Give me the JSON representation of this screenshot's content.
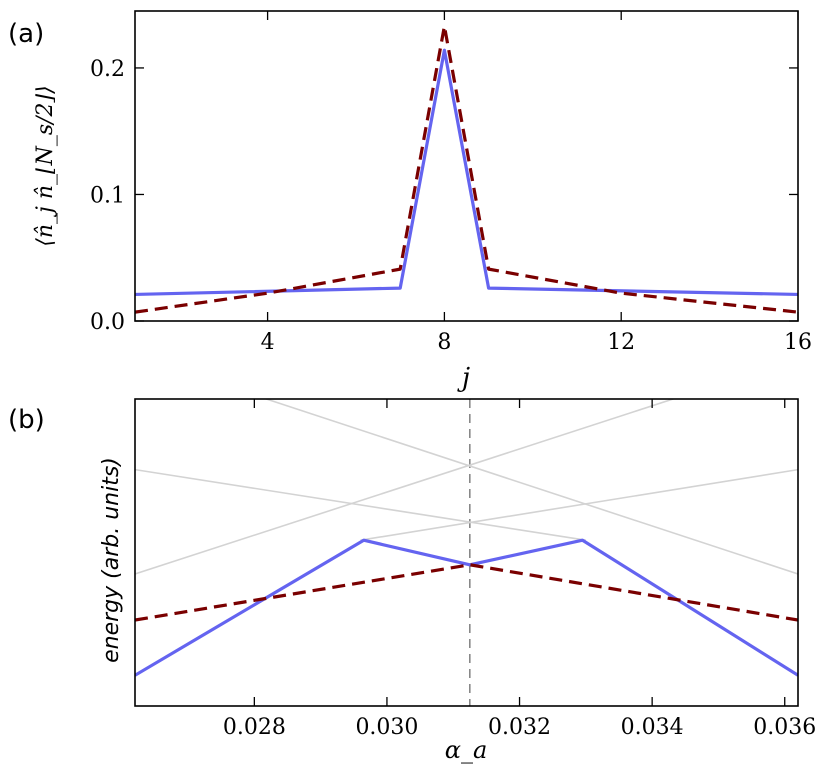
{
  "figure": {
    "panel_a_label": "(a)",
    "panel_b_label": "(b)"
  },
  "chart_data": [
    {
      "type": "line",
      "panel": "(a)",
      "title": "",
      "xlabel": "j",
      "ylabel": "⟨n̂_j n̂_⌊N_s/2⌋⟩",
      "xlim": [
        1,
        16
      ],
      "ylim": [
        0.0,
        0.245
      ],
      "xticks": [
        4,
        8,
        12,
        16
      ],
      "xtick_labels": [
        "4",
        "8",
        "12",
        "16"
      ],
      "yticks": [
        0.0,
        0.1,
        0.2
      ],
      "ytick_labels": [
        "0.0",
        "0.1",
        "0.2"
      ],
      "series": [
        {
          "name": "solid",
          "style": "solid",
          "color": "#6464f0",
          "x": [
            1,
            7,
            8,
            9,
            16
          ],
          "y": [
            0.021,
            0.026,
            0.214,
            0.026,
            0.021
          ]
        },
        {
          "name": "dashed",
          "style": "dashed",
          "color": "#7a0000",
          "x": [
            1,
            4,
            7,
            8,
            9,
            12,
            16
          ],
          "y": [
            0.007,
            0.022,
            0.041,
            0.233,
            0.041,
            0.022,
            0.007
          ]
        }
      ]
    },
    {
      "type": "line",
      "panel": "(b)",
      "title": "",
      "xlabel": "α_a",
      "ylabel": "energy (arb. units)",
      "xlim": [
        0.0262,
        0.0362
      ],
      "ylim": [
        0.0,
        1.0
      ],
      "xticks": [
        0.028,
        0.03,
        0.032,
        0.034,
        0.036
      ],
      "xtick_labels": [
        "0.028",
        "0.030",
        "0.032",
        "0.034",
        "0.036"
      ],
      "vline": 0.03125,
      "series": [
        {
          "name": "solid",
          "style": "solid",
          "color": "#6464f0",
          "x": [
            0.0262,
            0.02965,
            0.03125,
            0.03295,
            0.0362
          ],
          "y": [
            0.1,
            0.54,
            0.46,
            0.54,
            0.1
          ]
        },
        {
          "name": "dashed",
          "style": "dashed",
          "color": "#7a0000",
          "x": [
            0.0262,
            0.03125,
            0.0362
          ],
          "y": [
            0.28,
            0.46,
            0.28
          ]
        },
        {
          "name": "gray-1",
          "style": "thin",
          "color": "#d3d3d3",
          "x": [
            0.0262,
            0.033
          ],
          "y": [
            0.77,
            0.54
          ]
        },
        {
          "name": "gray-2",
          "style": "thin",
          "color": "#d3d3d3",
          "x": [
            0.0296,
            0.0362
          ],
          "y": [
            0.54,
            0.77
          ]
        },
        {
          "name": "gray-3",
          "style": "thin",
          "color": "#d3d3d3",
          "x": [
            0.0279,
            0.0362
          ],
          "y": [
            1.02,
            0.43
          ]
        },
        {
          "name": "gray-4",
          "style": "thin",
          "color": "#d3d3d3",
          "x": [
            0.0262,
            0.0346
          ],
          "y": [
            0.43,
            1.02
          ]
        }
      ]
    }
  ]
}
